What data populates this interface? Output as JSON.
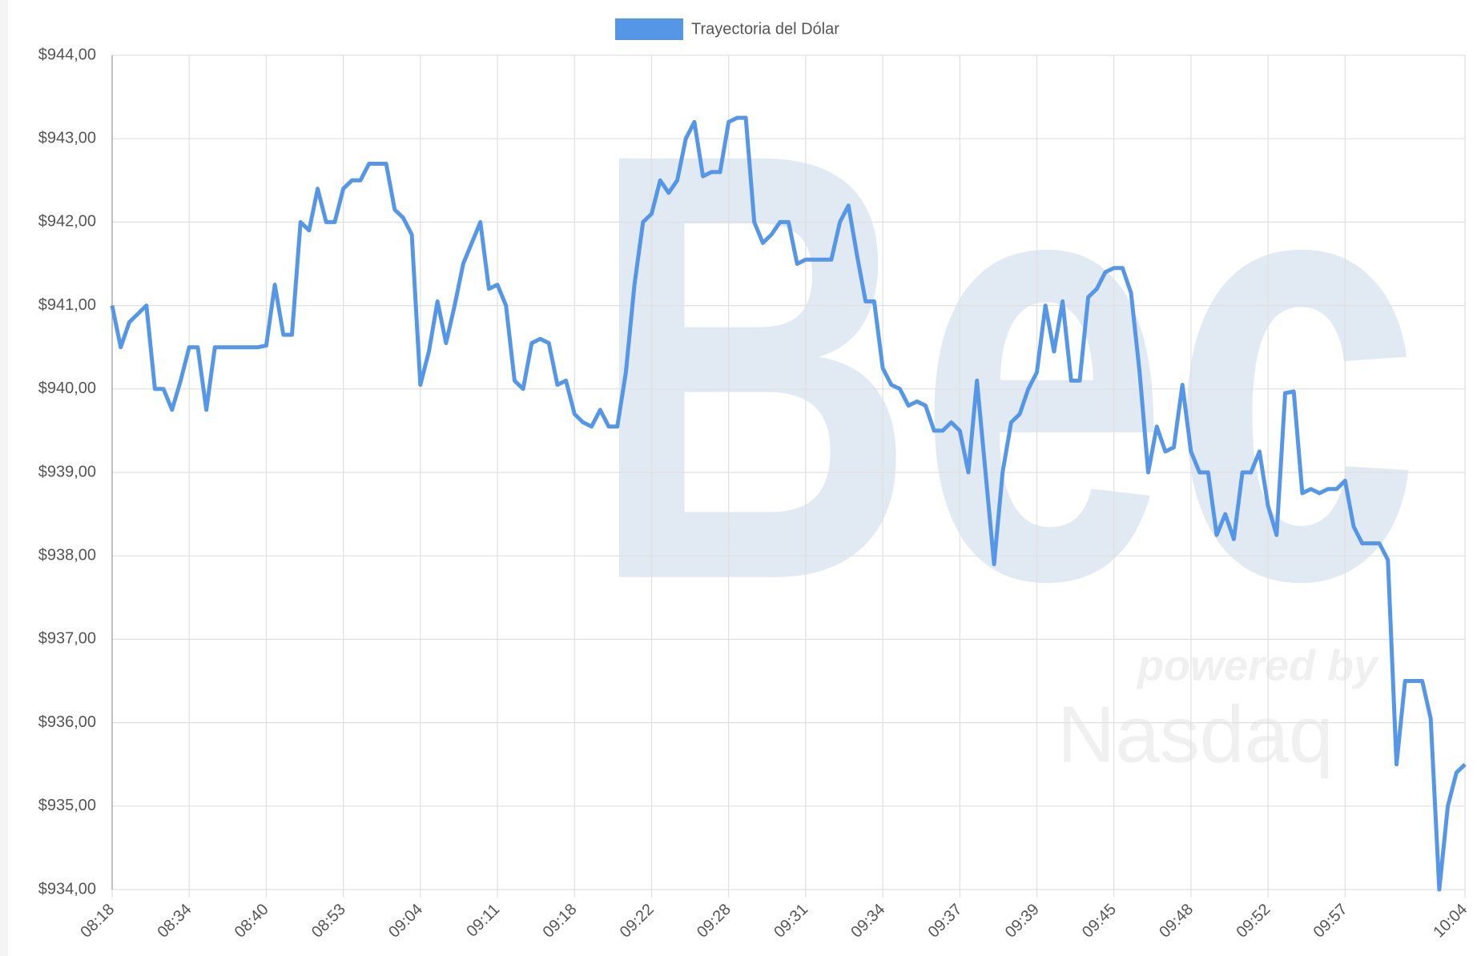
{
  "chart_data": {
    "type": "line",
    "watermark": {
      "brand": "Bec",
      "tagline": "powered by",
      "partner": "Nasdaq"
    },
    "categories": [
      "08:18",
      null,
      null,
      null,
      null,
      null,
      null,
      null,
      null,
      "08:34",
      null,
      null,
      null,
      null,
      null,
      null,
      null,
      null,
      "08:40",
      null,
      null,
      null,
      null,
      null,
      null,
      null,
      null,
      "08:53",
      null,
      null,
      null,
      null,
      null,
      null,
      null,
      null,
      "09:04",
      null,
      null,
      null,
      null,
      null,
      null,
      null,
      null,
      "09:11",
      null,
      null,
      null,
      null,
      null,
      null,
      null,
      null,
      "09:18",
      null,
      null,
      null,
      null,
      null,
      null,
      null,
      null,
      "09:22",
      null,
      null,
      null,
      null,
      null,
      null,
      null,
      null,
      "09:28",
      null,
      null,
      null,
      null,
      null,
      null,
      null,
      null,
      "09:31",
      null,
      null,
      null,
      null,
      null,
      null,
      null,
      null,
      "09:34",
      null,
      null,
      null,
      null,
      null,
      null,
      null,
      null,
      "09:37",
      null,
      null,
      null,
      null,
      null,
      null,
      null,
      null,
      "09:39",
      null,
      null,
      null,
      null,
      null,
      null,
      null,
      null,
      "09:45",
      null,
      null,
      null,
      null,
      null,
      null,
      null,
      null,
      "09:48",
      null,
      null,
      null,
      null,
      null,
      null,
      null,
      null,
      "09:52",
      null,
      null,
      null,
      null,
      null,
      null,
      null,
      null,
      "09:57",
      null,
      null,
      null,
      null,
      null,
      null,
      null,
      null,
      null,
      null,
      null,
      null,
      null,
      "10:04"
    ],
    "series": [
      {
        "name": "Trayectoria del Dólar",
        "color": "#5596e6",
        "values": [
          941.0,
          940.5,
          940.8,
          940.9,
          941.0,
          940.0,
          940.0,
          939.75,
          940.1,
          940.5,
          940.5,
          939.75,
          940.5,
          940.5,
          940.5,
          940.5,
          940.5,
          940.5,
          940.52,
          941.25,
          940.65,
          940.65,
          942.0,
          941.9,
          942.4,
          942.0,
          942.0,
          942.4,
          942.5,
          942.5,
          942.7,
          942.7,
          942.7,
          942.15,
          942.05,
          941.85,
          940.05,
          940.45,
          941.05,
          940.55,
          941.0,
          941.5,
          941.75,
          942.0,
          941.2,
          941.25,
          941.0,
          940.1,
          940.0,
          940.55,
          940.6,
          940.55,
          940.05,
          940.1,
          939.7,
          939.6,
          939.55,
          939.75,
          939.55,
          939.55,
          940.2,
          941.25,
          942.0,
          942.1,
          942.5,
          942.35,
          942.5,
          943.0,
          943.2,
          942.55,
          942.6,
          942.6,
          943.2,
          943.25,
          943.25,
          942.0,
          941.75,
          941.85,
          942.0,
          942.0,
          941.5,
          941.55,
          941.55,
          941.55,
          941.55,
          942.0,
          942.2,
          941.6,
          941.05,
          941.05,
          940.25,
          940.05,
          940.0,
          939.8,
          939.85,
          939.8,
          939.5,
          939.5,
          939.6,
          939.5,
          939.0,
          940.1,
          939.0,
          937.9,
          939.0,
          939.6,
          939.7,
          940.0,
          940.2,
          941.0,
          940.45,
          941.05,
          940.1,
          940.1,
          941.1,
          941.2,
          941.4,
          941.45,
          941.45,
          941.15,
          940.2,
          939.0,
          939.55,
          939.25,
          939.3,
          940.05,
          939.25,
          939.0,
          939.0,
          938.25,
          938.5,
          938.2,
          939.0,
          939.0,
          939.25,
          938.6,
          938.25,
          939.95,
          939.97,
          938.75,
          938.8,
          938.75,
          938.8,
          938.8,
          938.9,
          938.35,
          938.15,
          938.15,
          938.15,
          937.95,
          935.5,
          936.5,
          936.5,
          936.5,
          936.05,
          934.0,
          935.0,
          935.4,
          935.5
        ]
      }
    ],
    "ylim": [
      934,
      944
    ],
    "yticks": [
      {
        "value": 934,
        "label": "$934,00"
      },
      {
        "value": 935,
        "label": "$935,00"
      },
      {
        "value": 936,
        "label": "$936,00"
      },
      {
        "value": 937,
        "label": "$937,00"
      },
      {
        "value": 938,
        "label": "$938,00"
      },
      {
        "value": 939,
        "label": "$939,00"
      },
      {
        "value": 940,
        "label": "$940,00"
      },
      {
        "value": 941,
        "label": "$941,00"
      },
      {
        "value": 942,
        "label": "$942,00"
      },
      {
        "value": 943,
        "label": "$943,00"
      },
      {
        "value": 944,
        "label": "$944,00"
      }
    ],
    "grid": true,
    "legend": "top"
  }
}
